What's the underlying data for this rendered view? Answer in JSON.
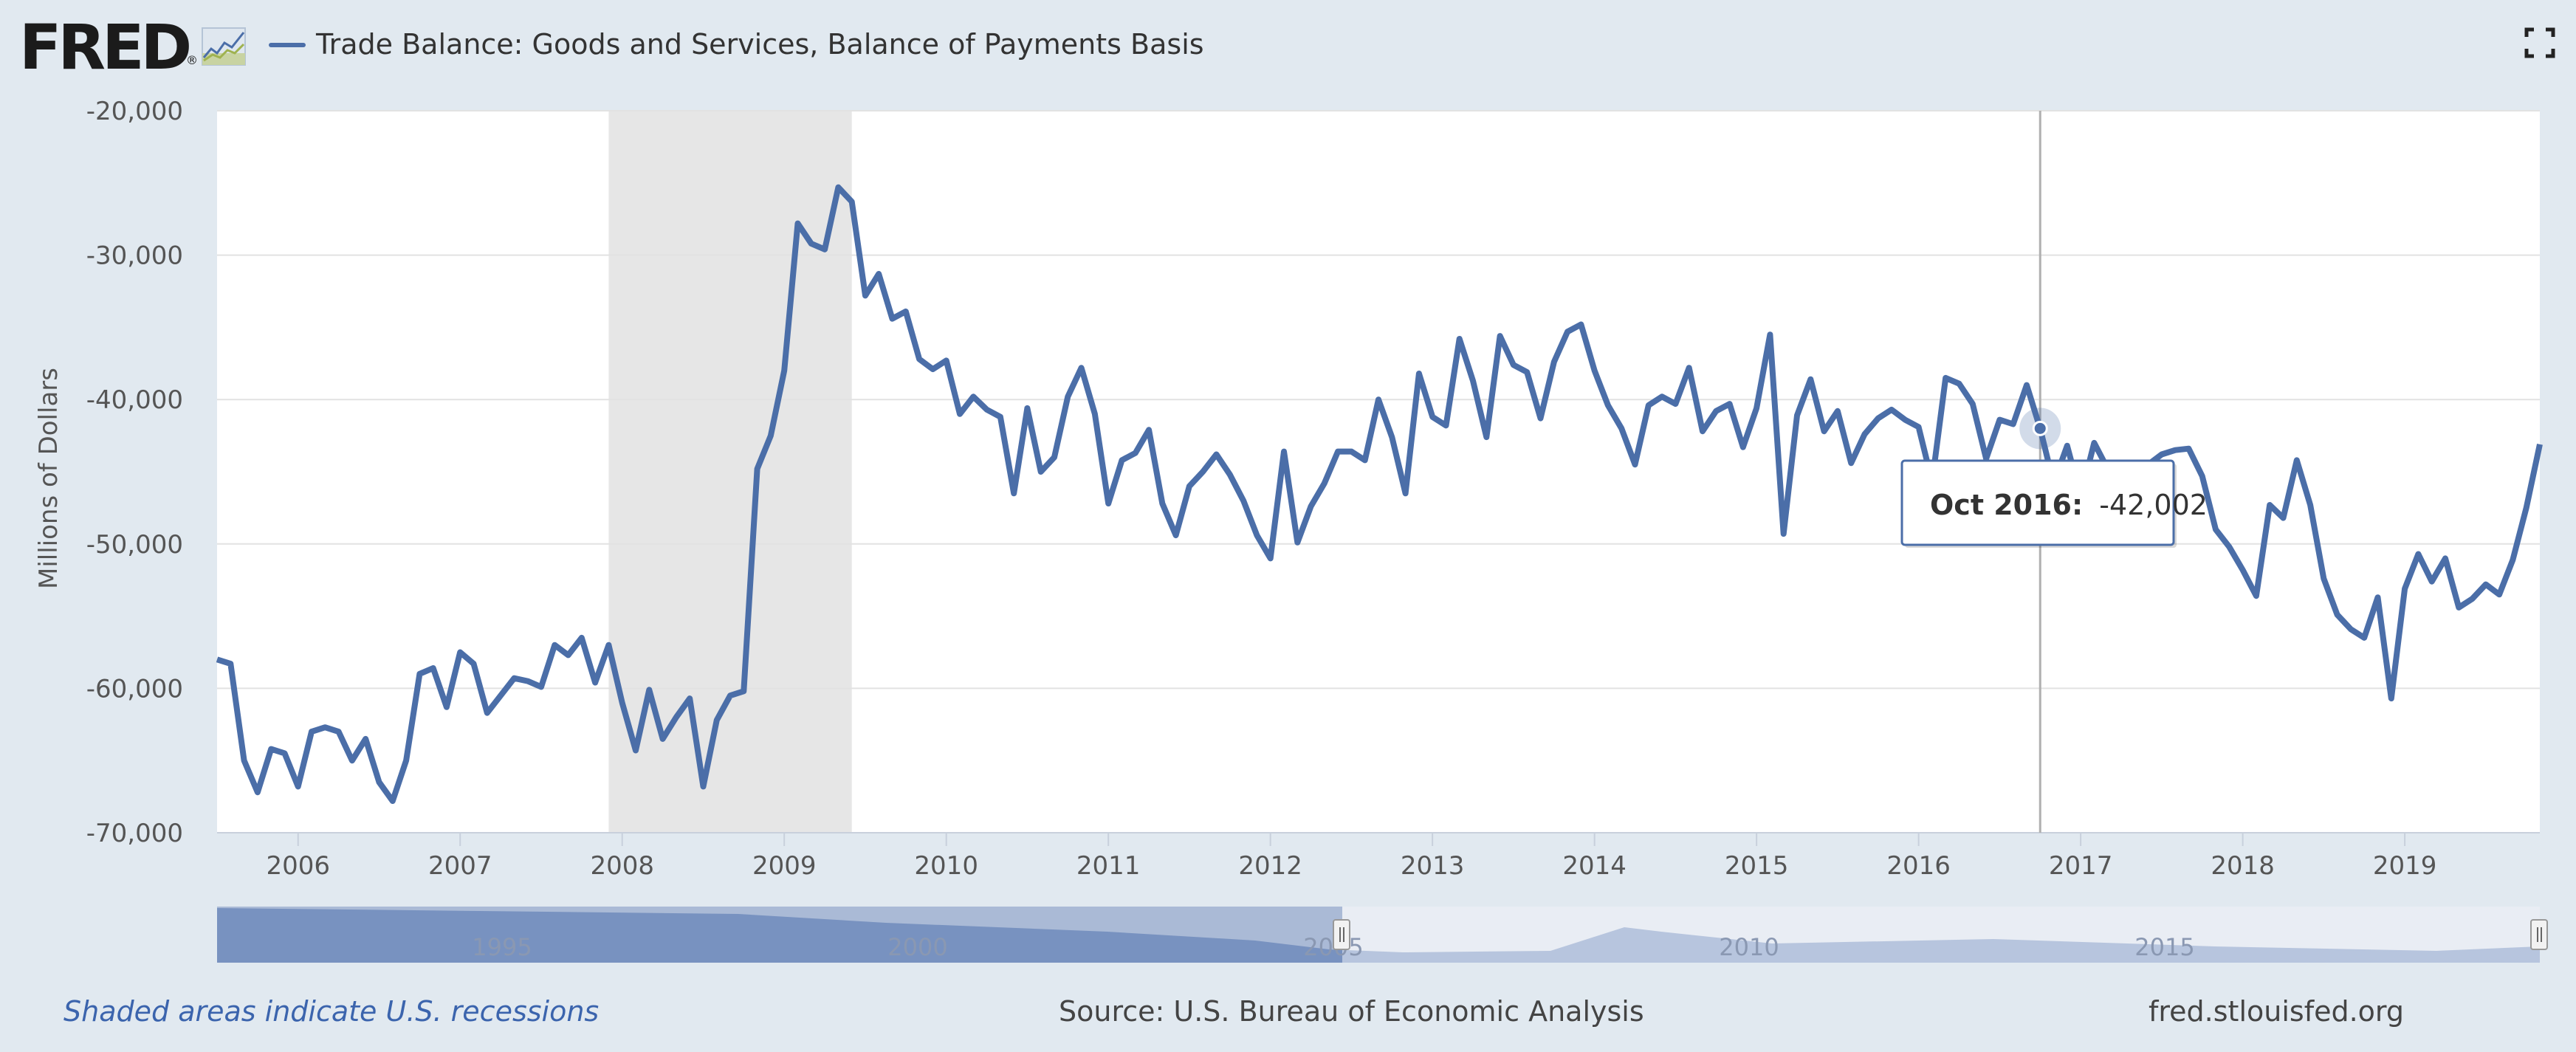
{
  "header": {
    "logo": "FRED",
    "legend_label": "Trade Balance: Goods and Services, Balance of Payments Basis",
    "fullscreen_icon": "fullscreen-icon"
  },
  "footer": {
    "recession_note": "Shaded areas indicate U.S. recessions",
    "source": "Source: U.S. Bureau of Economic Analysis",
    "site": "fred.stlouisfed.org"
  },
  "tooltip": {
    "date": "Oct 2016:",
    "value": "-42,002"
  },
  "navigator": {
    "labels": [
      "1995",
      "2000",
      "2005",
      "2010",
      "2015"
    ]
  },
  "colors": {
    "line": "#4b6ea8",
    "recession": "#e6e6e6",
    "background": "#e1e9f0",
    "plot": "#ffffff"
  },
  "chart_data": {
    "type": "line",
    "title": "Trade Balance: Goods and Services, Balance of Payments Basis",
    "ylabel": "Millions of Dollars",
    "xlabel": "",
    "ylim": [
      -70000,
      -20000
    ],
    "xlim": [
      "2005-07",
      "2019-11"
    ],
    "y_ticks": [
      "-20,000",
      "-30,000",
      "-40,000",
      "-50,000",
      "-60,000",
      "-70,000"
    ],
    "x_ticks": [
      "2006",
      "2007",
      "2008",
      "2009",
      "2010",
      "2011",
      "2012",
      "2013",
      "2014",
      "2015",
      "2016",
      "2017",
      "2018",
      "2019"
    ],
    "grid": true,
    "recessions": [
      [
        "2007-12",
        "2009-06"
      ]
    ],
    "highlight": {
      "date": "2016-10",
      "value": -42002
    },
    "series": [
      {
        "name": "Trade Balance: Goods and Services, Balance of Payments Basis",
        "x": [
          "2005-07",
          "2005-08",
          "2005-09",
          "2005-10",
          "2005-11",
          "2005-12",
          "2006-01",
          "2006-02",
          "2006-03",
          "2006-04",
          "2006-05",
          "2006-06",
          "2006-07",
          "2006-08",
          "2006-09",
          "2006-10",
          "2006-11",
          "2006-12",
          "2007-01",
          "2007-02",
          "2007-03",
          "2007-04",
          "2007-05",
          "2007-06",
          "2007-07",
          "2007-08",
          "2007-09",
          "2007-10",
          "2007-11",
          "2007-12",
          "2008-01",
          "2008-02",
          "2008-03",
          "2008-04",
          "2008-05",
          "2008-06",
          "2008-07",
          "2008-08",
          "2008-09",
          "2008-10",
          "2008-11",
          "2008-12",
          "2009-01",
          "2009-02",
          "2009-03",
          "2009-04",
          "2009-05",
          "2009-06",
          "2009-07",
          "2009-08",
          "2009-09",
          "2009-10",
          "2009-11",
          "2009-12",
          "2010-01",
          "2010-02",
          "2010-03",
          "2010-04",
          "2010-05",
          "2010-06",
          "2010-07",
          "2010-08",
          "2010-09",
          "2010-10",
          "2010-11",
          "2010-12",
          "2011-01",
          "2011-02",
          "2011-03",
          "2011-04",
          "2011-05",
          "2011-06",
          "2011-07",
          "2011-08",
          "2011-09",
          "2011-10",
          "2011-11",
          "2011-12",
          "2012-01",
          "2012-02",
          "2012-03",
          "2012-04",
          "2012-05",
          "2012-06",
          "2012-07",
          "2012-08",
          "2012-09",
          "2012-10",
          "2012-11",
          "2012-12",
          "2013-01",
          "2013-02",
          "2013-03",
          "2013-04",
          "2013-05",
          "2013-06",
          "2013-07",
          "2013-08",
          "2013-09",
          "2013-10",
          "2013-11",
          "2013-12",
          "2014-01",
          "2014-02",
          "2014-03",
          "2014-04",
          "2014-05",
          "2014-06",
          "2014-07",
          "2014-08",
          "2014-09",
          "2014-10",
          "2014-11",
          "2014-12",
          "2015-01",
          "2015-02",
          "2015-03",
          "2015-04",
          "2015-05",
          "2015-06",
          "2015-07",
          "2015-08",
          "2015-09",
          "2015-10",
          "2015-11",
          "2015-12",
          "2016-01",
          "2016-02",
          "2016-03",
          "2016-04",
          "2016-05",
          "2016-06",
          "2016-07",
          "2016-08",
          "2016-09",
          "2016-10",
          "2016-11",
          "2016-12",
          "2017-01",
          "2017-02",
          "2017-03",
          "2017-04",
          "2017-05",
          "2017-06",
          "2017-07",
          "2017-08",
          "2017-09",
          "2017-10",
          "2017-11",
          "2017-12",
          "2018-01",
          "2018-02",
          "2018-03",
          "2018-04",
          "2018-05",
          "2018-06",
          "2018-07",
          "2018-08",
          "2018-09",
          "2018-10",
          "2018-11",
          "2018-12",
          "2019-01",
          "2019-02",
          "2019-03",
          "2019-04",
          "2019-05",
          "2019-06",
          "2019-07",
          "2019-08",
          "2019-09",
          "2019-10",
          "2019-11"
        ],
        "values": [
          -58000,
          -58300,
          -65000,
          -67200,
          -64200,
          -64500,
          -66800,
          -63000,
          -62700,
          -63000,
          -65000,
          -63500,
          -66500,
          -67800,
          -65000,
          -59000,
          -58600,
          -61300,
          -57500,
          -58300,
          -61700,
          -60500,
          -59300,
          -59500,
          -59900,
          -57000,
          -57700,
          -56500,
          -59600,
          -57000,
          -61000,
          -64300,
          -60100,
          -63500,
          -62000,
          -60700,
          -66800,
          -62200,
          -60500,
          -60200,
          -44800,
          -42500,
          -38000,
          -27800,
          -29200,
          -29600,
          -25300,
          -26300,
          -32800,
          -31300,
          -34400,
          -33900,
          -37200,
          -37900,
          -37300,
          -41000,
          -39800,
          -40700,
          -41200,
          -46500,
          -40600,
          -45000,
          -44000,
          -39800,
          -37800,
          -41000,
          -47200,
          -44200,
          -43700,
          -42100,
          -47200,
          -49400,
          -46000,
          -45000,
          -43800,
          -45200,
          -47000,
          -49400,
          -51000,
          -43600,
          -49900,
          -47400,
          -45800,
          -43600,
          -43600,
          -44200,
          -40000,
          -42600,
          -46500,
          -38200,
          -41200,
          -41800,
          -35800,
          -38700,
          -42600,
          -35600,
          -37600,
          -38100,
          -41300,
          -37400,
          -35300,
          -34800,
          -38000,
          -40400,
          -42000,
          -44500,
          -40400,
          -39800,
          -40300,
          -37800,
          -42200,
          -40800,
          -40300,
          -43300,
          -40600,
          -35500,
          -49300,
          -41100,
          -38600,
          -42200,
          -40800,
          -44400,
          -42400,
          -41300,
          -40700,
          -41400,
          -41900,
          -45700,
          -38500,
          -38900,
          -40300,
          -44100,
          -41400,
          -41700,
          -39000,
          -42002,
          -45800,
          -43200,
          -46700,
          -43000,
          -44800,
          -45200,
          -46400,
          -44500,
          -43800,
          -43500,
          -43400,
          -45300,
          -49000,
          -50200,
          -51800,
          -53600,
          -47300,
          -48200,
          -44200,
          -47300,
          -52400,
          -54900,
          -55900,
          -56500,
          -53700,
          -60700,
          -53100,
          -50700,
          -52600,
          -51000,
          -54400,
          -53800,
          -52800,
          -53500,
          -51100,
          -47500,
          -43100
        ]
      }
    ]
  }
}
